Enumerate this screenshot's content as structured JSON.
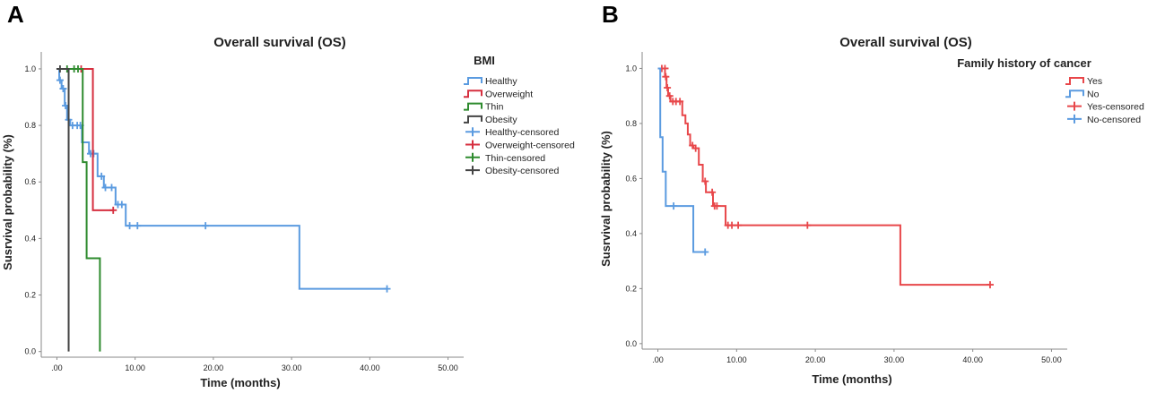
{
  "chart_data": [
    {
      "type": "line",
      "panel_label": "A",
      "title": "Overall survival (OS)",
      "xlabel": "Time (months)",
      "ylabel": "Susrvival probability (%)",
      "xlim": [
        -2,
        52
      ],
      "ylim": [
        -0.02,
        1.06
      ],
      "xticks": [
        0,
        10,
        20,
        30,
        40,
        50
      ],
      "xtick_labels": [
        ".00",
        "10.00",
        "20.00",
        "30.00",
        "40.00",
        "50.00"
      ],
      "yticks": [
        0,
        0.2,
        0.4,
        0.6,
        0.8,
        1.0
      ],
      "ytick_labels": [
        "0.0",
        "0.2",
        "0.4",
        "0.6",
        "0.8",
        "1.0"
      ],
      "grid": false,
      "legend_position": "right",
      "legend_title": "BMI",
      "series": [
        {
          "name": "Healthy",
          "censored_label": "Healthy-censored",
          "color": "#5b9be0",
          "steps": [
            [
              0,
              1.0
            ],
            [
              0.3,
              0.96
            ],
            [
              0.6,
              0.93
            ],
            [
              1.0,
              0.87
            ],
            [
              1.3,
              0.82
            ],
            [
              1.7,
              0.8
            ],
            [
              3.2,
              0.74
            ],
            [
              4.1,
              0.7
            ],
            [
              5.2,
              0.62
            ],
            [
              6.0,
              0.58
            ],
            [
              7.5,
              0.52
            ],
            [
              8.8,
              0.445
            ],
            [
              31.0,
              0.222
            ],
            [
              42.2,
              0.222
            ]
          ],
          "censored": [
            [
              0.4,
              0.96
            ],
            [
              0.8,
              0.93
            ],
            [
              1.1,
              0.87
            ],
            [
              1.5,
              0.82
            ],
            [
              2.0,
              0.8
            ],
            [
              2.6,
              0.8
            ],
            [
              3.0,
              0.8
            ],
            [
              4.3,
              0.7
            ],
            [
              4.7,
              0.7
            ],
            [
              5.7,
              0.62
            ],
            [
              6.2,
              0.58
            ],
            [
              7.0,
              0.58
            ],
            [
              7.8,
              0.52
            ],
            [
              8.3,
              0.52
            ],
            [
              9.3,
              0.445
            ],
            [
              10.3,
              0.445
            ],
            [
              19.0,
              0.445
            ],
            [
              42.2,
              0.222
            ]
          ]
        },
        {
          "name": "Overweight",
          "censored_label": "Overweight-censored",
          "color": "#d62f3f",
          "steps": [
            [
              0,
              1.0
            ],
            [
              4.6,
              0.5
            ],
            [
              7.2,
              0.5
            ]
          ],
          "censored": [
            [
              3.1,
              1.0
            ],
            [
              7.2,
              0.5
            ]
          ]
        },
        {
          "name": "Thin",
          "censored_label": "Thin-censored",
          "color": "#2e8b2e",
          "steps": [
            [
              0,
              1.0
            ],
            [
              3.3,
              0.67
            ],
            [
              3.8,
              0.33
            ],
            [
              5.5,
              0.0
            ]
          ],
          "censored": [
            [
              1.3,
              1.0
            ],
            [
              2.2,
              1.0
            ],
            [
              2.7,
              1.0
            ]
          ]
        },
        {
          "name": "Obesity",
          "censored_label": "Obesity-censored",
          "color": "#444444",
          "steps": [
            [
              0,
              1.0
            ],
            [
              1.5,
              0.0
            ]
          ],
          "censored": [
            [
              0.4,
              1.0
            ]
          ]
        }
      ]
    },
    {
      "type": "line",
      "panel_label": "B",
      "title": "Overall survival (OS)",
      "xlabel": "Time (months)",
      "ylabel": "Susrvival probability (%)",
      "xlim": [
        -2,
        52
      ],
      "ylim": [
        -0.02,
        1.06
      ],
      "xticks": [
        0,
        10,
        20,
        30,
        40,
        50
      ],
      "xtick_labels": [
        ".00",
        "10.00",
        "20.00",
        "30.00",
        "40.00",
        "50.00"
      ],
      "yticks": [
        0,
        0.2,
        0.4,
        0.6,
        0.8,
        1.0
      ],
      "ytick_labels": [
        "0.0",
        "0.2",
        "0.4",
        "0.6",
        "0.8",
        "1.0"
      ],
      "grid": false,
      "legend_position": "top-right",
      "legend_title": "Family history of cancer",
      "series": [
        {
          "name": "Yes",
          "censored_label": "Yes-censored",
          "color": "#e8474a",
          "steps": [
            [
              0,
              1.0
            ],
            [
              0.9,
              0.97
            ],
            [
              1.1,
              0.93
            ],
            [
              1.3,
              0.9
            ],
            [
              1.6,
              0.88
            ],
            [
              3.1,
              0.83
            ],
            [
              3.5,
              0.8
            ],
            [
              3.8,
              0.76
            ],
            [
              4.1,
              0.72
            ],
            [
              4.5,
              0.71
            ],
            [
              5.2,
              0.65
            ],
            [
              5.7,
              0.59
            ],
            [
              6.1,
              0.55
            ],
            [
              6.6,
              0.55
            ],
            [
              7.0,
              0.5
            ],
            [
              8.6,
              0.43
            ],
            [
              30.8,
              0.214
            ],
            [
              42.2,
              0.214
            ]
          ],
          "censored": [
            [
              0.5,
              1.0
            ],
            [
              0.9,
              1.0
            ],
            [
              1.0,
              0.97
            ],
            [
              1.2,
              0.93
            ],
            [
              1.5,
              0.9
            ],
            [
              1.9,
              0.88
            ],
            [
              2.3,
              0.88
            ],
            [
              2.8,
              0.88
            ],
            [
              4.4,
              0.72
            ],
            [
              4.8,
              0.71
            ],
            [
              6.0,
              0.59
            ],
            [
              6.9,
              0.55
            ],
            [
              7.2,
              0.5
            ],
            [
              7.5,
              0.5
            ],
            [
              8.9,
              0.43
            ],
            [
              9.4,
              0.43
            ],
            [
              10.2,
              0.43
            ],
            [
              19.0,
              0.43
            ],
            [
              42.2,
              0.214
            ]
          ]
        },
        {
          "name": "No",
          "censored_label": "No-censored",
          "color": "#5b9be0",
          "steps": [
            [
              0,
              1.0
            ],
            [
              0.3,
              0.75
            ],
            [
              0.6,
              0.625
            ],
            [
              1.0,
              0.5
            ],
            [
              4.5,
              0.333
            ],
            [
              6.2,
              0.333
            ]
          ],
          "censored": [
            [
              2.0,
              0.5
            ],
            [
              6.0,
              0.333
            ]
          ]
        }
      ]
    }
  ]
}
